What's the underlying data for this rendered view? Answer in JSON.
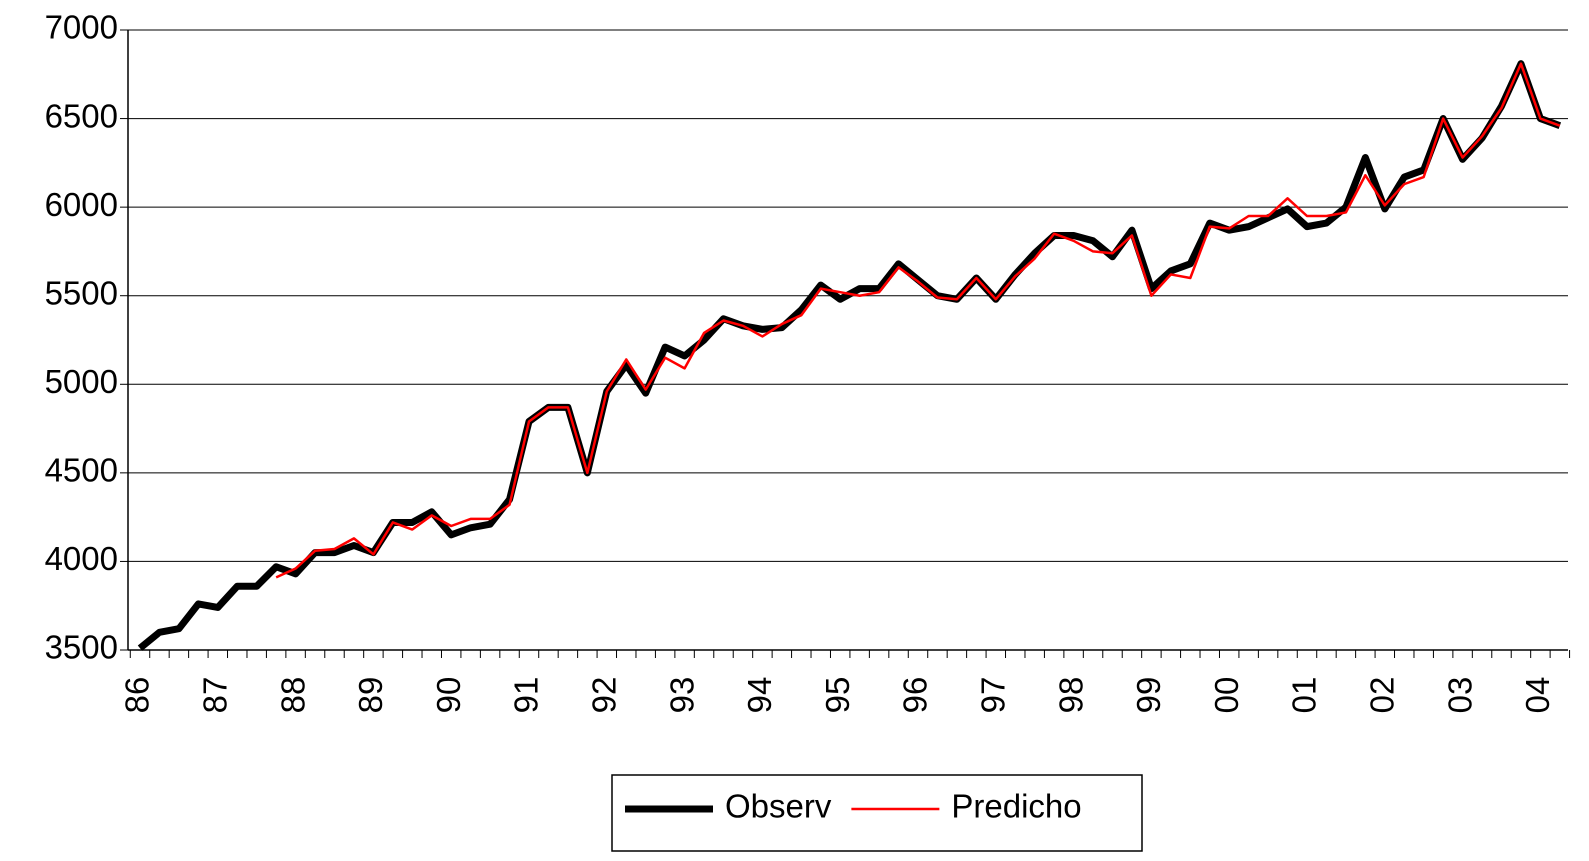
{
  "chart_data": {
    "type": "line",
    "categories": [
      "86",
      null,
      null,
      null,
      "87",
      null,
      null,
      null,
      "88",
      null,
      null,
      null,
      "89",
      null,
      null,
      null,
      "90",
      null,
      null,
      null,
      "91",
      null,
      null,
      null,
      "92",
      null,
      null,
      null,
      "93",
      null,
      null,
      null,
      "94",
      null,
      null,
      null,
      "95",
      null,
      null,
      null,
      "96",
      null,
      null,
      null,
      "97",
      null,
      null,
      null,
      "98",
      null,
      null,
      null,
      "99",
      null,
      null,
      null,
      "00",
      null,
      null,
      null,
      "01",
      null,
      null,
      null,
      "02",
      null,
      null,
      null,
      "03",
      null,
      null,
      null,
      "04",
      null
    ],
    "series": [
      {
        "name": "Observ",
        "color": "#000000",
        "values": [
          3510,
          3600,
          3620,
          3760,
          3740,
          3860,
          3860,
          3970,
          3930,
          4050,
          4050,
          4090,
          4050,
          4220,
          4220,
          4280,
          4150,
          4190,
          4210,
          4350,
          4790,
          4870,
          4870,
          4500,
          4960,
          5110,
          4950,
          5210,
          5160,
          5250,
          5370,
          5330,
          5310,
          5320,
          5420,
          5560,
          5480,
          5540,
          5540,
          5680,
          5590,
          5500,
          5480,
          5600,
          5480,
          5620,
          5740,
          5840,
          5840,
          5810,
          5720,
          5870,
          5540,
          5640,
          5680,
          5910,
          5870,
          5890,
          5940,
          5990,
          5890,
          5910,
          6000,
          6280,
          5990,
          6170,
          6210,
          6500,
          6270,
          6390,
          6570,
          6810,
          6500,
          6460
        ]
      },
      {
        "name": "Predicho",
        "color": "#ff0000",
        "values": [
          null,
          null,
          null,
          null,
          null,
          null,
          null,
          3910,
          3960,
          4060,
          4070,
          4130,
          4040,
          4220,
          4180,
          4260,
          4200,
          4240,
          4240,
          4320,
          4790,
          4870,
          4870,
          4500,
          4960,
          5140,
          4970,
          5150,
          5090,
          5290,
          5360,
          5330,
          5270,
          5340,
          5390,
          5540,
          5520,
          5500,
          5520,
          5660,
          5580,
          5490,
          5480,
          5600,
          5480,
          5610,
          5710,
          5850,
          5810,
          5750,
          5740,
          5840,
          5500,
          5620,
          5600,
          5890,
          5880,
          5950,
          5950,
          6050,
          5950,
          5950,
          5970,
          6180,
          6010,
          6130,
          6170,
          6500,
          6280,
          6400,
          6560,
          6810,
          6500,
          6460
        ]
      }
    ],
    "ylim": [
      3500,
      7000
    ],
    "yticks": [
      3500,
      4000,
      4500,
      5000,
      5500,
      6000,
      6500,
      7000
    ],
    "grid": true,
    "legend": "bottom"
  }
}
